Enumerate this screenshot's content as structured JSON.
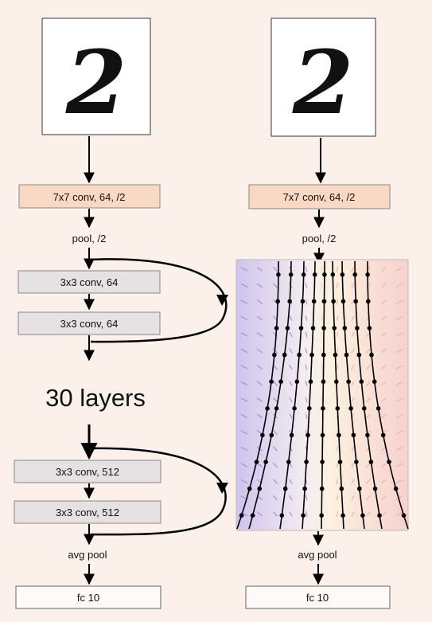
{
  "left_network": {
    "input_digit": "2",
    "conv1_label": "7x7 conv, 64, /2",
    "pool_label": "pool, /2",
    "block1_layer1": "3x3 conv, 64",
    "block1_layer2": "3x3 conv, 64",
    "middle_label": "30 layers",
    "block2_layer1": "3x3 conv, 512",
    "block2_layer2": "3x3 conv, 512",
    "avgpool_label": "avg pool",
    "fc_label": "fc 10"
  },
  "right_network": {
    "input_digit": "2",
    "conv1_label": "7x7 conv, 64, /2",
    "pool_label": "pool, /2",
    "avgpool_label": "avg pool",
    "fc_label": "fc 10"
  },
  "colors": {
    "background": "#fbf1ea",
    "conv1_fill": "#f9d9c4",
    "conv_block_fill": "#e6e1e2",
    "fc_fill": "#fdfaf8",
    "field_cool": "#9a82d6",
    "field_warm": "#f0a9a0",
    "field_center": "#f3d7a0"
  }
}
